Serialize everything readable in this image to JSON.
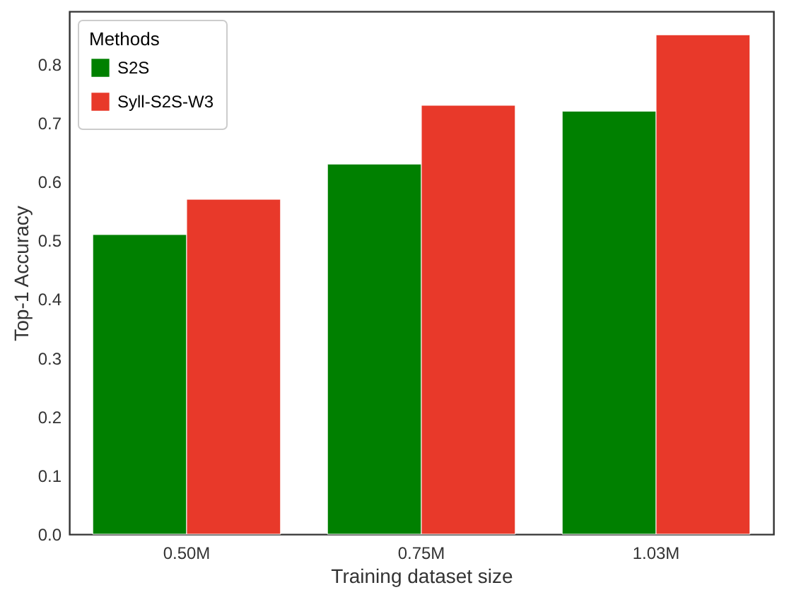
{
  "chart_data": {
    "type": "bar",
    "xlabel": "Training dataset size",
    "ylabel": "Top-1 Accuracy",
    "legend_title": "Methods",
    "categories": [
      "0.50M",
      "0.75M",
      "1.03M"
    ],
    "series": [
      {
        "name": "S2S",
        "color": "#008000",
        "values": [
          0.51,
          0.63,
          0.72
        ]
      },
      {
        "name": "Syll-S2S-W3",
        "color": "#e8392a",
        "values": [
          0.57,
          0.73,
          0.85
        ]
      }
    ],
    "ylim": [
      0,
      0.89
    ],
    "yticks": [
      {
        "value": 0,
        "label": "0.0"
      },
      0.1,
      0.2,
      0.3,
      0.4,
      0.5,
      0.6,
      0.7,
      0.8
    ],
    "grid": false,
    "legend": "top left"
  }
}
